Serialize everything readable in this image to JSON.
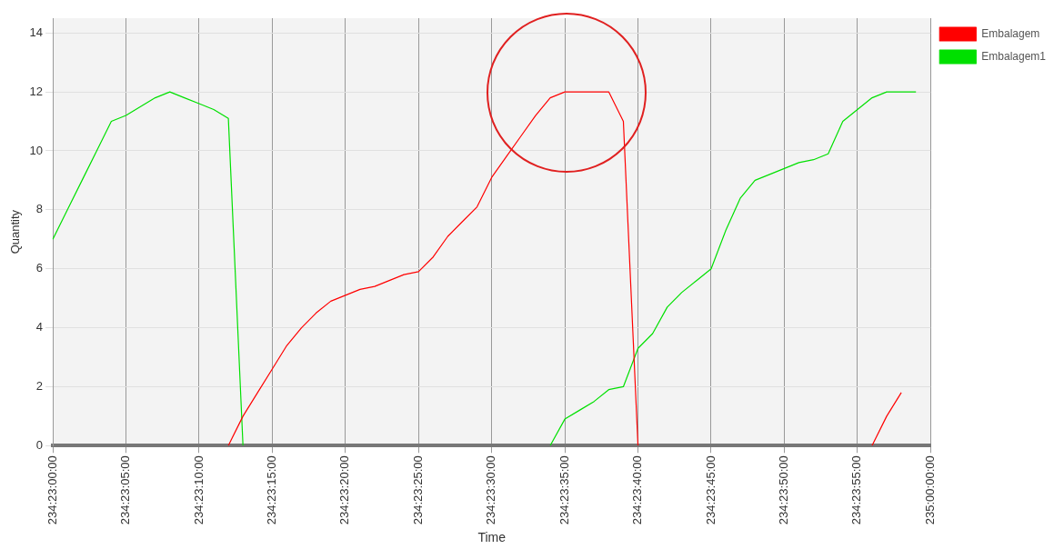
{
  "chart_data": {
    "type": "line",
    "xlabel": "Time",
    "ylabel": "Quantity",
    "categories": [
      "234:23:00:00",
      null,
      null,
      null,
      null,
      "234:23:05:00",
      null,
      null,
      null,
      null,
      "234:23:10:00",
      null,
      null,
      null,
      null,
      "234:23:15:00",
      null,
      null,
      null,
      null,
      "234:23:20:00",
      null,
      null,
      null,
      null,
      "234:23:25:00",
      null,
      null,
      null,
      null,
      "234:23:30:00",
      null,
      null,
      null,
      null,
      "234:23:35:00",
      null,
      null,
      null,
      null,
      "234:23:40:00",
      null,
      null,
      null,
      null,
      "234:23:45:00",
      null,
      null,
      null,
      null,
      "234:23:50:00",
      null,
      null,
      null,
      null,
      "234:23:55:00",
      null,
      null,
      null,
      null,
      "235:00:00:00"
    ],
    "ylim": [
      0,
      14.5
    ],
    "yticks": [
      0,
      2,
      4,
      6,
      8,
      10,
      12,
      14
    ],
    "grid": true,
    "legend": "top right",
    "marker": "none",
    "line_style": "solid",
    "series": [
      {
        "name": "Embalagem",
        "color": "#ff0000",
        "values": [
          null,
          null,
          null,
          null,
          null,
          null,
          null,
          null,
          null,
          null,
          null,
          null,
          0,
          1,
          1.8,
          2.6,
          3.4,
          4,
          4.5,
          4.9,
          5.1,
          5.3,
          5.4,
          5.6,
          5.8,
          5.9,
          6.4,
          7.1,
          7.6,
          8.1,
          9.1,
          9.8,
          10.5,
          11.2,
          11.8,
          12,
          12,
          12,
          12,
          11,
          0,
          null,
          null,
          null,
          null,
          null,
          null,
          null,
          null,
          null,
          null,
          null,
          null,
          null,
          null,
          null,
          0,
          1,
          1.8,
          null,
          null
        ]
      },
      {
        "name": "Embalagem1",
        "color": "#00e000",
        "values": [
          7,
          8,
          9,
          10,
          11,
          11.2,
          11.5,
          11.8,
          12,
          11.8,
          11.6,
          11.4,
          11.1,
          0,
          null,
          null,
          null,
          null,
          null,
          null,
          null,
          null,
          null,
          null,
          null,
          null,
          null,
          null,
          null,
          null,
          null,
          null,
          null,
          null,
          0,
          0.9,
          1.2,
          1.5,
          1.9,
          2,
          3.3,
          3.8,
          4.7,
          5.2,
          5.6,
          6,
          7.3,
          8.4,
          9,
          9.2,
          9.4,
          9.6,
          9.7,
          9.9,
          11,
          11.4,
          11.8,
          12,
          12,
          12,
          null
        ]
      }
    ]
  }
}
